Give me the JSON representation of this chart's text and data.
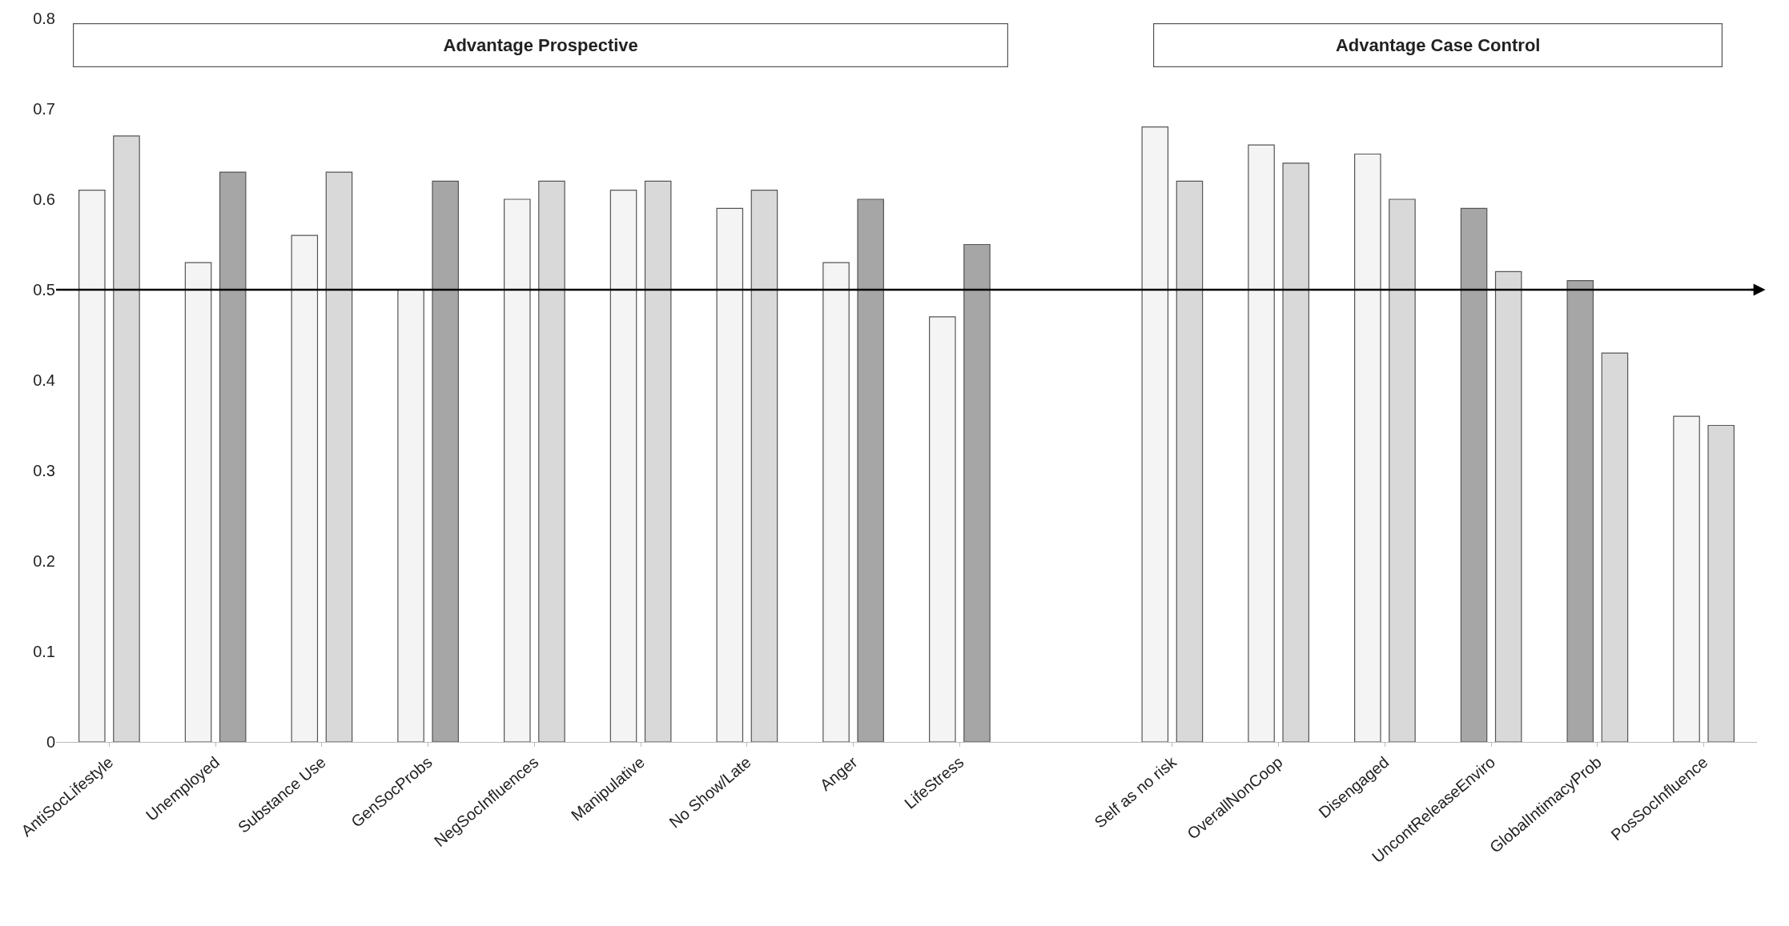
{
  "chart_data": {
    "type": "bar",
    "categories": [
      "AntiSocLifestyle",
      "Unemployed",
      "Substance Use",
      "GenSocProbs",
      "NegSocInfluences",
      "Manipulative",
      "No Show/Late",
      "Anger",
      "LifeStress",
      null,
      "Self as no risk",
      "OverallNonCoop",
      "Disengaged",
      "UncontReleaseEnviro",
      "GlobalIntimacyProb",
      "PosSocInfluence"
    ],
    "series": [
      {
        "colors": [
          "#f4f4f4",
          "#f4f4f4",
          "#f4f4f4",
          "#f4f4f4",
          "#f4f4f4",
          "#f4f4f4",
          "#f4f4f4",
          "#f4f4f4",
          "#f4f4f4",
          "#f4f4f4",
          "#f4f4f4",
          "#f4f4f4",
          "#f4f4f4",
          "#a6a6a6",
          "#a6a6a6",
          "#f4f4f4"
        ],
        "values": [
          0.61,
          0.53,
          0.56,
          0.5,
          0.6,
          0.61,
          0.59,
          0.53,
          0.47,
          null,
          0.68,
          0.66,
          0.65,
          0.59,
          0.51,
          0.36
        ]
      },
      {
        "colors": [
          "#d9d9d9",
          "#a6a6a6",
          "#d9d9d9",
          "#a6a6a6",
          "#d9d9d9",
          "#d9d9d9",
          "#d9d9d9",
          "#a6a6a6",
          "#a6a6a6",
          "#d9d9d9",
          "#d9d9d9",
          "#d9d9d9",
          "#d9d9d9",
          "#d9d9d9",
          "#d9d9d9",
          "#d9d9d9"
        ],
        "values": [
          0.67,
          0.63,
          0.63,
          0.62,
          0.62,
          0.62,
          0.61,
          0.6,
          0.55,
          null,
          0.62,
          0.64,
          0.6,
          0.52,
          0.43,
          0.35
        ]
      }
    ],
    "ylim": [
      0,
      0.8
    ],
    "yticks": [
      {
        "value": 0,
        "label": "0"
      },
      0.1,
      0.2,
      0.3,
      0.4,
      0.5,
      0.6,
      0.7,
      0.8
    ],
    "ref_lines": [
      {
        "axis": "y",
        "value": 0.5,
        "color": "#000000"
      }
    ],
    "annotations": [
      "Advantage Prospective",
      "Advantage Case Control"
    ]
  }
}
